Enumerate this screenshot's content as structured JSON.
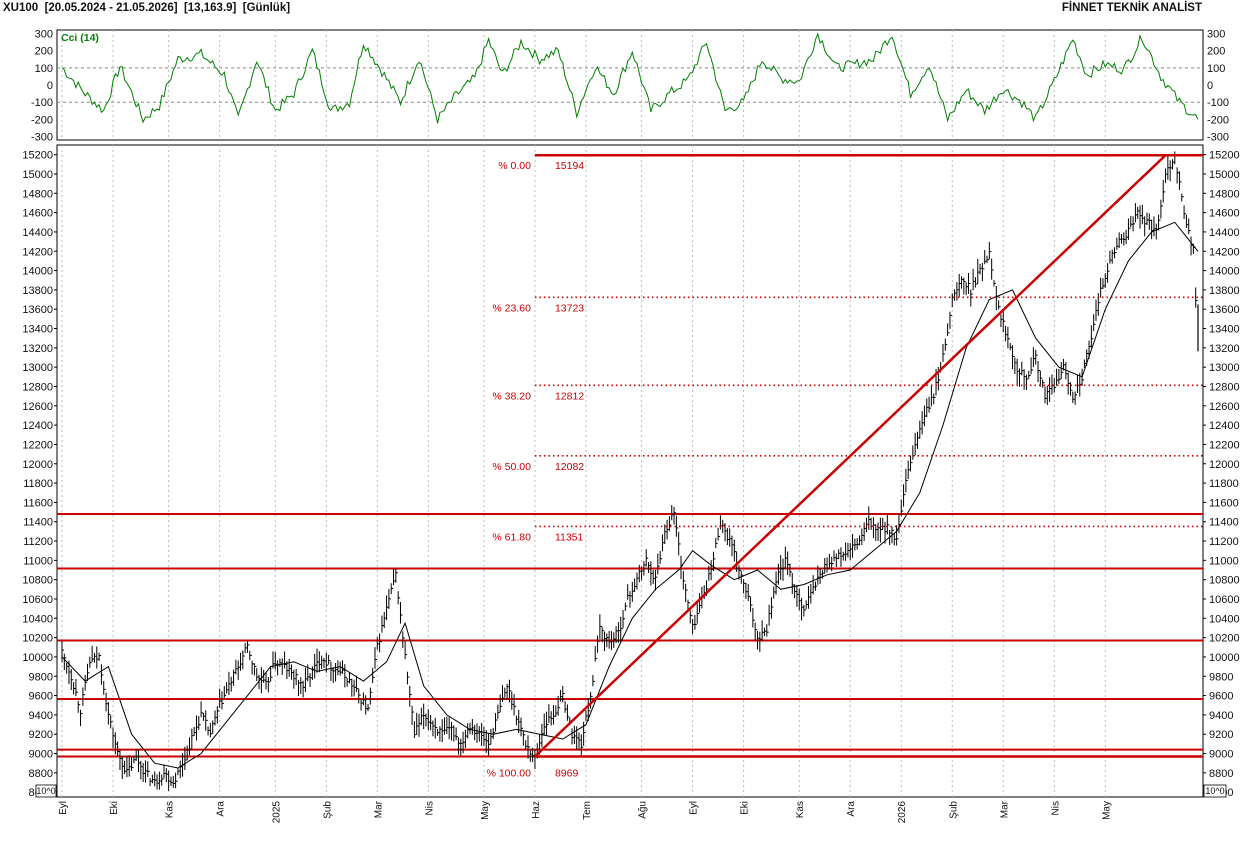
{
  "header": {
    "symbol": "XU100",
    "range": "[20.05.2024 - 21.05.2026]",
    "last": "[13,163.9]",
    "period": "[Günlük]",
    "brand": "FİNNET TEKNİK ANALİST"
  },
  "colors": {
    "price": "#000000",
    "ma": "#000000",
    "cci": "#008000",
    "levels": "#cc0000",
    "fib": "#cc0000",
    "grid": "#000000"
  },
  "chart_data": [
    {
      "type": "line",
      "title": "Cci (14)",
      "ylim": [
        -320,
        320
      ],
      "yticks": [
        300,
        200,
        100,
        0,
        -100,
        -200,
        -300
      ],
      "series": [
        {
          "name": "Cci (14)",
          "x_index": [
            0,
            10,
            18,
            25,
            35,
            42,
            50,
            60,
            70,
            76,
            84,
            92,
            100,
            108,
            116,
            124,
            130,
            138,
            146,
            154,
            162,
            170,
            178,
            184,
            190,
            198,
            206,
            214,
            222,
            230,
            238,
            246,
            254,
            262,
            270,
            278,
            286,
            294,
            302,
            310,
            318,
            326,
            334,
            342,
            350,
            358,
            366,
            374,
            382,
            390,
            398,
            406,
            414,
            420,
            428,
            436,
            442,
            450,
            458,
            466,
            474,
            482,
            490
          ],
          "values": [
            100,
            -50,
            -150,
            110,
            -200,
            -120,
            150,
            180,
            60,
            -200,
            150,
            -150,
            -50,
            200,
            -150,
            -100,
            250,
            80,
            -100,
            160,
            -200,
            -60,
            40,
            260,
            60,
            250,
            150,
            200,
            -160,
            110,
            -50,
            200,
            -150,
            -50,
            30,
            250,
            -150,
            -100,
            150,
            40,
            20,
            300,
            100,
            120,
            150,
            300,
            -50,
            120,
            -200,
            -30,
            -150,
            -20,
            -100,
            -200,
            20,
            270,
            60,
            120,
            90,
            280,
            50,
            -100,
            -200
          ]
        }
      ]
    },
    {
      "type": "line",
      "title": "XU100",
      "ylim": [
        8550,
        15300
      ],
      "yticks": [
        15200,
        15000,
        14800,
        14600,
        14400,
        14200,
        14000,
        13800,
        13600,
        13400,
        13200,
        13000,
        12800,
        12600,
        12400,
        12200,
        12000,
        11800,
        11600,
        11400,
        11200,
        11000,
        10800,
        10600,
        10400,
        10200,
        10000,
        9800,
        9600,
        9400,
        9200,
        9000,
        8800,
        8600
      ],
      "x_labels": [
        "Eyl",
        "Eki",
        "Kas",
        "Ara",
        "2025",
        "Şub",
        "Mar",
        "Nis",
        "May",
        "Haz",
        "Tem",
        "Ağu",
        "Eyl",
        "Eki",
        "Kas",
        "Ara",
        "2026",
        "Şub",
        "Mar",
        "Nis",
        "May"
      ],
      "x_label_index": [
        0,
        22,
        46,
        68,
        92,
        114,
        136,
        158,
        182,
        204,
        226,
        250,
        272,
        294,
        318,
        340,
        362,
        384,
        406,
        428,
        450
      ],
      "scale_note": "10^0",
      "series": [
        {
          "name": "XU100",
          "x_index": [
            0,
            4,
            8,
            12,
            16,
            20,
            24,
            28,
            32,
            36,
            40,
            44,
            48,
            52,
            56,
            60,
            64,
            68,
            72,
            76,
            80,
            84,
            88,
            92,
            96,
            100,
            104,
            108,
            112,
            116,
            120,
            124,
            128,
            132,
            136,
            140,
            144,
            148,
            152,
            156,
            160,
            164,
            168,
            172,
            176,
            180,
            184,
            188,
            192,
            196,
            200,
            204,
            208,
            212,
            216,
            220,
            224,
            228,
            232,
            236,
            240,
            244,
            248,
            252,
            256,
            260,
            264,
            268,
            272,
            276,
            280,
            284,
            288,
            292,
            296,
            300,
            304,
            308,
            312,
            316,
            320,
            324,
            328,
            332,
            336,
            340,
            344,
            348,
            352,
            356,
            360,
            364,
            368,
            372,
            376,
            380,
            384,
            388,
            392,
            396,
            400,
            404,
            408,
            412,
            416,
            420,
            424,
            428,
            432,
            436,
            440,
            444,
            448,
            452,
            456,
            460,
            464,
            468,
            472,
            476,
            480,
            484,
            488,
            490
          ],
          "values": [
            10050,
            9800,
            9450,
            9950,
            10000,
            9400,
            9000,
            8800,
            8950,
            8800,
            8700,
            8800,
            8700,
            8900,
            9150,
            9400,
            9200,
            9500,
            9700,
            9900,
            10100,
            9800,
            9700,
            9950,
            9900,
            9800,
            9700,
            9850,
            10000,
            9900,
            9850,
            9750,
            9600,
            9450,
            10100,
            10500,
            10850,
            10000,
            9200,
            9400,
            9300,
            9200,
            9250,
            9100,
            9300,
            9200,
            9100,
            9400,
            9700,
            9400,
            9100,
            8950,
            9300,
            9400,
            9600,
            9200,
            9100,
            9600,
            10300,
            10150,
            10250,
            10600,
            10800,
            11000,
            10800,
            11300,
            11500,
            10800,
            10300,
            10600,
            10900,
            11400,
            11200,
            10900,
            10600,
            10200,
            10300,
            10800,
            11000,
            10700,
            10500,
            10700,
            10900,
            11000,
            11050,
            11100,
            11200,
            11400,
            11300,
            11350,
            11200,
            11800,
            12200,
            12500,
            12700,
            13100,
            13700,
            13900,
            13800,
            14000,
            14200,
            13600,
            13300,
            13000,
            12900,
            13100,
            12700,
            12800,
            13000,
            12700,
            12900,
            13300,
            13800,
            14100,
            14300,
            14400,
            14600,
            14500,
            14400,
            15000,
            15194,
            14600,
            14200,
            13163.9
          ]
        },
        {
          "name": "MA",
          "x_index": [
            0,
            10,
            20,
            30,
            40,
            50,
            60,
            70,
            80,
            90,
            100,
            110,
            120,
            130,
            140,
            148,
            156,
            166,
            176,
            186,
            196,
            206,
            216,
            226,
            236,
            246,
            256,
            266,
            272,
            280,
            290,
            300,
            310,
            320,
            330,
            340,
            350,
            360,
            370,
            380,
            390,
            400,
            410,
            420,
            430,
            440,
            450,
            460,
            470,
            480,
            490
          ],
          "values": [
            10000,
            9750,
            9900,
            9200,
            8900,
            8850,
            9000,
            9300,
            9600,
            9900,
            9950,
            9850,
            9900,
            9750,
            9950,
            10350,
            9700,
            9400,
            9250,
            9200,
            9250,
            9200,
            9150,
            9300,
            9900,
            10400,
            10700,
            10900,
            11100,
            10950,
            10800,
            10900,
            10700,
            10750,
            10850,
            10900,
            11100,
            11300,
            11700,
            12400,
            13200,
            13700,
            13800,
            13300,
            13000,
            12900,
            13600,
            14100,
            14400,
            14500,
            14200
          ]
        }
      ]
    }
  ],
  "levels": [
    11480,
    10915,
    10170,
    9565,
    9040,
    8969
  ],
  "fibonacci": {
    "low": 8969,
    "high": 15194,
    "x_index_low": 204,
    "x_index_high": 476,
    "lines": [
      {
        "pct": "% 0.00",
        "value": "15194",
        "price": 15194
      },
      {
        "pct": "% 23.60",
        "value": "13723",
        "price": 13723
      },
      {
        "pct": "% 38.20",
        "value": "12812",
        "price": 12812
      },
      {
        "pct": "% 50.00",
        "value": "12082",
        "price": 12082
      },
      {
        "pct": "% 61.80",
        "value": "11351",
        "price": 11351
      },
      {
        "pct": "% 100.00",
        "value": "8969",
        "price": 8969
      }
    ]
  }
}
